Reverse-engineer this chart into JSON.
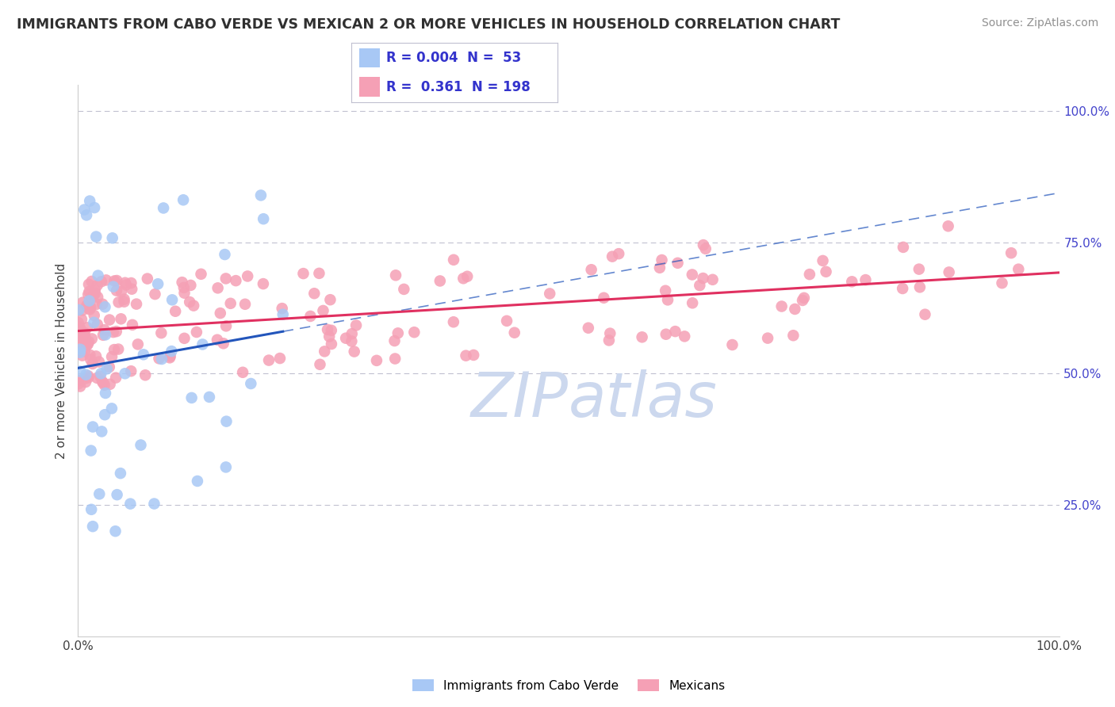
{
  "title": "IMMIGRANTS FROM CABO VERDE VS MEXICAN 2 OR MORE VEHICLES IN HOUSEHOLD CORRELATION CHART",
  "source": "Source: ZipAtlas.com",
  "ylabel": "2 or more Vehicles in Household",
  "legend_R1": "0.004",
  "legend_N1": "53",
  "legend_R2": "0.361",
  "legend_N2": "198",
  "blue_color": "#a8c8f5",
  "pink_color": "#f5a0b5",
  "blue_line_color": "#2255bb",
  "pink_line_color": "#e03060",
  "grid_color": "#c0c0d0",
  "watermark_color": "#ccd8ee",
  "title_color": "#303030",
  "source_color": "#909090",
  "legend_text_color": "#3333cc",
  "axis_label_color": "#4444cc",
  "bottom_legend_color": "#404040",
  "xlim": [
    0.0,
    1.0
  ],
  "ylim": [
    0.0,
    1.05
  ],
  "yticks": [
    0.25,
    0.5,
    0.75,
    1.0
  ],
  "ytick_labels": [
    "25.0%",
    "50.0%",
    "75.0%",
    "100.0%"
  ]
}
